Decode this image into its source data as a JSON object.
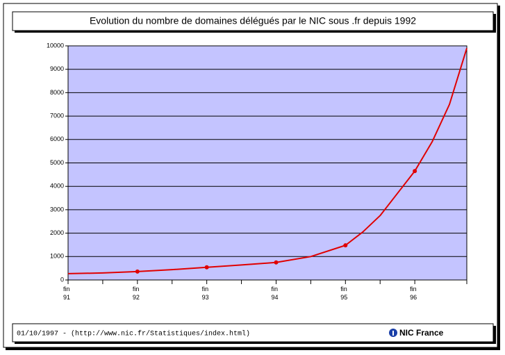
{
  "chart_data": {
    "type": "line",
    "title": "Evolution du nombre de domaines délégués par le NIC sous .fr depuis 1992",
    "x": [
      1991,
      1991.5,
      1992,
      1992.5,
      1993,
      1993.5,
      1994,
      1994.5,
      1995,
      1995.25,
      1995.5,
      1995.75,
      1996,
      1996.25,
      1996.5,
      1996.75
    ],
    "series": [
      {
        "color": "#e00000",
        "style": "line",
        "values": [
          270,
          300,
          360,
          440,
          540,
          640,
          750,
          1000,
          1480,
          2050,
          2750,
          3700,
          4650,
          5900,
          7500,
          9900
        ]
      },
      {
        "color": "#e00000",
        "style": "markers",
        "x": [
          1992,
          1993,
          1994,
          1995,
          1996
        ],
        "values": [
          360,
          540,
          750,
          1480,
          4650
        ]
      }
    ],
    "xlim": [
      1991,
      1996.75
    ],
    "xticks": [
      {
        "value": 1991,
        "label": "fin 91"
      },
      {
        "value": 1992,
        "label": "fin 92"
      },
      {
        "value": 1993,
        "label": "fin 93"
      },
      {
        "value": 1994,
        "label": "fin 94"
      },
      {
        "value": 1995,
        "label": "fin 95"
      },
      {
        "value": 1996,
        "label": "fin 96"
      }
    ],
    "ylim": [
      0,
      10000
    ],
    "yticks": [
      0,
      1000,
      2000,
      3000,
      4000,
      5000,
      6000,
      7000,
      8000,
      9000,
      10000
    ],
    "grid": true,
    "background": "#c4c4ff"
  },
  "footer": {
    "source": "01/10/1997 - (http://www.nic.fr/Statistiques/index.html)",
    "logo": "NIC France"
  }
}
